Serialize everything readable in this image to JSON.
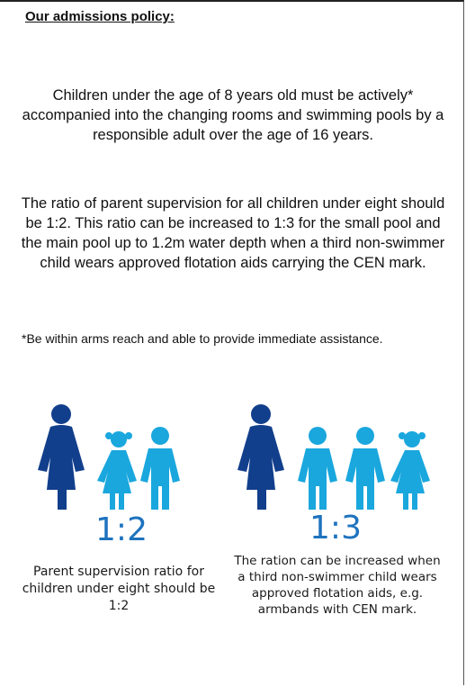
{
  "heading": "Our admissions policy:",
  "paragraphs": {
    "p1": "Children under the age of 8 years old must be actively* accompanied into the changing rooms and swimming pools by a responsible adult over the age of 16 years.",
    "p2": "The ratio of parent supervision for all children under eight should be 1:2. This ratio can be increased to 1:3 for the small pool and the main pool up to 1.2m water depth when a third non-swimmer child wears approved flotation aids carrying the CEN mark."
  },
  "footnote": "*Be within arms reach and able to provide immediate assistance.",
  "left_group": {
    "ratio": "1:2",
    "caption": "Parent supervision ratio for children under eight should be 1:2",
    "figures": [
      "adult-figure-icon",
      "girl-figure-icon",
      "boy-figure-icon"
    ]
  },
  "right_group": {
    "ratio": "1:3",
    "caption": "The ration can be increased when a third non-swimmer child wears approved flotation aids, e.g. armbands with CEN mark.",
    "figures": [
      "adult-figure-icon",
      "boy-figure-icon",
      "boy-figure-icon",
      "girl-figure-icon"
    ]
  },
  "colors": {
    "adult": "#123f8c",
    "child": "#1aa7dd",
    "ratio_text": "#1e73be"
  }
}
